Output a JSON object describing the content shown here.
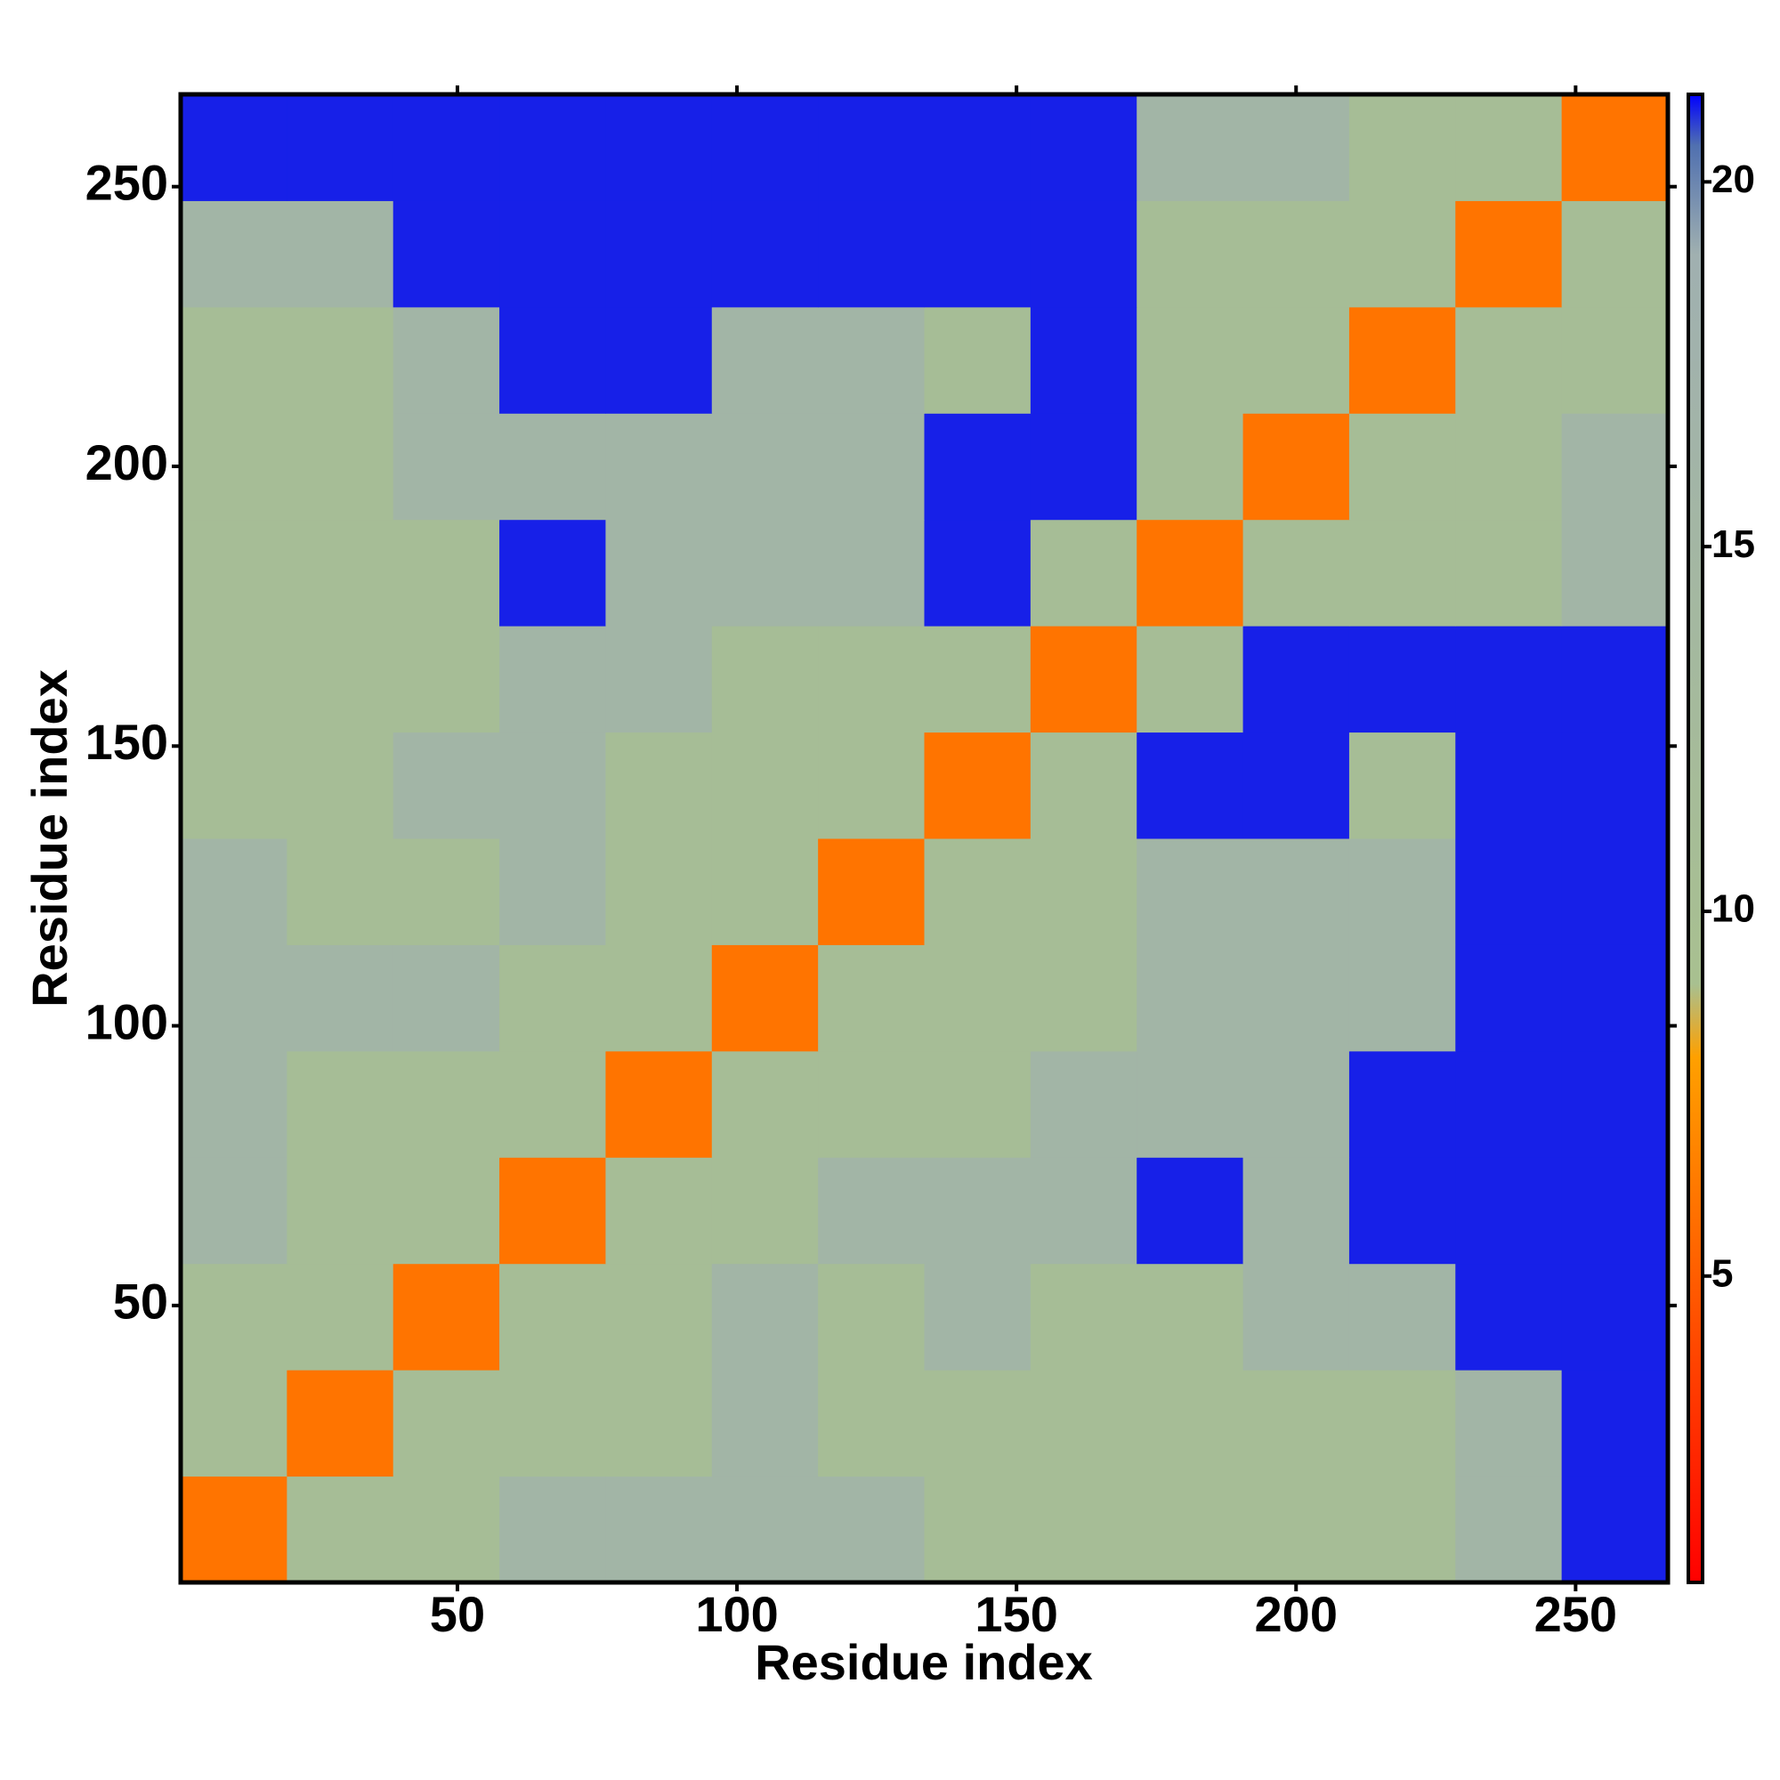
{
  "chart_data": {
    "type": "heatmap",
    "xlabel": "Residue index",
    "ylabel": "Residue index",
    "x_edges": [
      0.5,
      19.5,
      38.5,
      57.5,
      76.5,
      95.5,
      114.5,
      133.5,
      152.5,
      171.5,
      190.5,
      209.5,
      228.5,
      247.5,
      266.5
    ],
    "y_edges": [
      0.5,
      19.5,
      38.5,
      57.5,
      76.5,
      95.5,
      114.5,
      133.5,
      152.5,
      171.5,
      190.5,
      209.5,
      228.5,
      247.5,
      266.5
    ],
    "z": [
      [
        6,
        11,
        11,
        16,
        16,
        16,
        16,
        11,
        11,
        11,
        11,
        11,
        16,
        21
      ],
      [
        11,
        6,
        11,
        11,
        11,
        16,
        11,
        11,
        11,
        11,
        11,
        11,
        16,
        21
      ],
      [
        11,
        11,
        6,
        11,
        11,
        16,
        11,
        16,
        11,
        11,
        16,
        16,
        21,
        21
      ],
      [
        16,
        11,
        11,
        6,
        11,
        11,
        16,
        16,
        16,
        21,
        16,
        21,
        21,
        21
      ],
      [
        16,
        11,
        11,
        11,
        6,
        11,
        11,
        11,
        16,
        16,
        16,
        21,
        21,
        21
      ],
      [
        16,
        16,
        16,
        11,
        11,
        6,
        11,
        11,
        11,
        16,
        16,
        16,
        21,
        21
      ],
      [
        16,
        11,
        11,
        16,
        11,
        11,
        6,
        11,
        11,
        16,
        16,
        16,
        21,
        21
      ],
      [
        11,
        11,
        16,
        16,
        11,
        11,
        11,
        6,
        11,
        21,
        21,
        11,
        21,
        21
      ],
      [
        11,
        11,
        11,
        16,
        16,
        11,
        11,
        11,
        6,
        11,
        21,
        21,
        21,
        21
      ],
      [
        11,
        11,
        11,
        21,
        16,
        16,
        16,
        21,
        11,
        6,
        11,
        11,
        11,
        16
      ],
      [
        11,
        11,
        16,
        16,
        16,
        16,
        16,
        21,
        21,
        11,
        6,
        11,
        11,
        16
      ],
      [
        11,
        11,
        16,
        21,
        21,
        16,
        16,
        11,
        21,
        11,
        11,
        6,
        11,
        11
      ],
      [
        16,
        16,
        21,
        21,
        21,
        21,
        21,
        21,
        21,
        11,
        11,
        11,
        6,
        11
      ],
      [
        21,
        21,
        21,
        21,
        21,
        21,
        21,
        21,
        21,
        16,
        16,
        11,
        11,
        6
      ]
    ],
    "xlim": [
      0.5,
      266.5
    ],
    "ylim": [
      0.5,
      266.5
    ],
    "xticks": [
      50,
      100,
      150,
      200,
      250
    ],
    "yticks": [
      50,
      100,
      150,
      200,
      250
    ],
    "clim": [
      0.8,
      21.2
    ],
    "cticks": [
      5,
      10,
      15,
      20
    ],
    "colorscale": [
      {
        "value": 0.8,
        "color": "#ff0000"
      },
      {
        "value": 8,
        "color": "#ffa000"
      },
      {
        "value": 9,
        "color": "#a8c090"
      },
      {
        "value": 19,
        "color": "#a0b0b0"
      },
      {
        "value": 20.5,
        "color": "#5070b0"
      },
      {
        "value": 21.2,
        "color": "#0000ff"
      }
    ]
  }
}
